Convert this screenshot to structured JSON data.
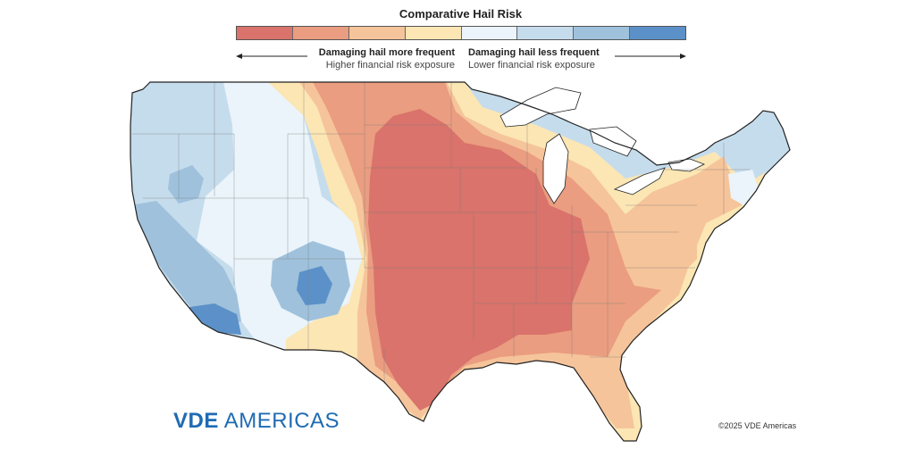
{
  "legend": {
    "title": "Comparative Hail Risk",
    "colors": [
      "#d9736b",
      "#ea9d80",
      "#f6c49a",
      "#fbe6b4",
      "#eaf4fa",
      "#c5dcec",
      "#9fc1dc",
      "#5b91c8"
    ],
    "left_head": "Damaging hail more frequent",
    "left_sub": "Higher financial risk exposure",
    "right_head": "Damaging hail less frequent",
    "right_sub": "Lower financial risk exposure"
  },
  "brand": {
    "part1": "VDE",
    "part2": "AMERICAS",
    "color": "#1f6bb3"
  },
  "copyright": "©2025 VDE Americas"
}
